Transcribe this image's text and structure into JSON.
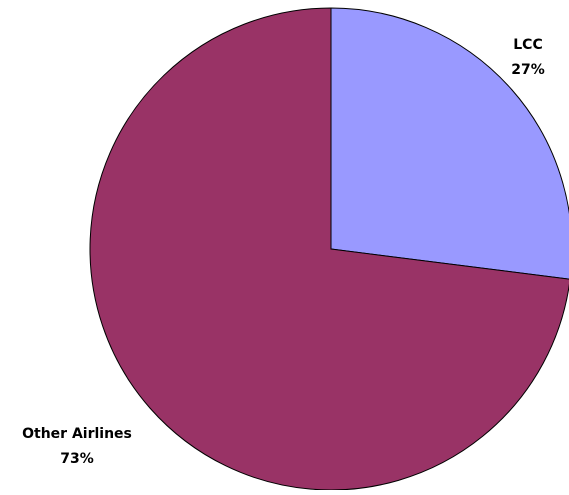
{
  "chart_data": {
    "type": "pie",
    "title": "",
    "slices": [
      {
        "label": "LCC",
        "value": 27,
        "value_label": "27%",
        "color": "#9999ff"
      },
      {
        "label": "Other Airlines",
        "value": 73,
        "value_label": "73%",
        "color": "#993366"
      }
    ],
    "start_angle_deg": 0,
    "direction": "clockwise",
    "outline_color": "#000000",
    "legend": "none"
  }
}
